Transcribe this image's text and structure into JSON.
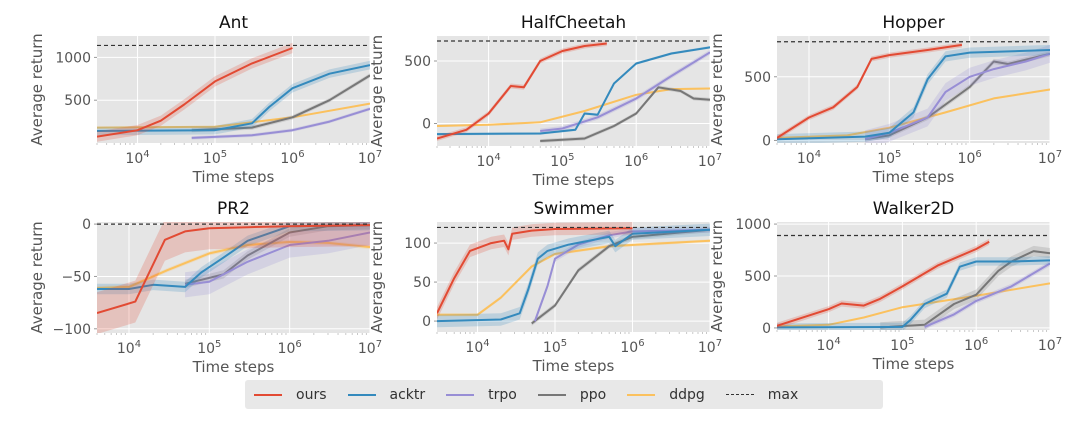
{
  "chart_data": [
    {
      "type": "line",
      "title": "Ant",
      "xlabel": "Time steps",
      "ylabel": "Average return",
      "xscale": "log",
      "xlim": [
        3000,
        10000000
      ],
      "ylim": [
        0,
        1250
      ],
      "xticks": [
        10000,
        100000,
        1000000,
        10000000
      ],
      "xtick_labels": [
        "10^4",
        "10^5",
        "10^6",
        "10^7"
      ],
      "yticks": [
        500,
        1000
      ],
      "ytick_labels": [
        "500",
        "1000"
      ],
      "max": 1140,
      "grid": true,
      "series": [
        {
          "name": "ours",
          "x": [
            3000,
            10000,
            20000,
            40000,
            100000,
            300000,
            1000000
          ],
          "y": [
            75,
            150,
            260,
            450,
            720,
            930,
            1110
          ],
          "band": 60
        },
        {
          "name": "acktr",
          "x": [
            3000,
            100000,
            300000,
            500000,
            1000000,
            3000000,
            10000000
          ],
          "y": [
            140,
            150,
            230,
            420,
            640,
            810,
            910
          ],
          "band": 50
        },
        {
          "name": "trpo",
          "x": [
            50000,
            300000,
            1000000,
            3000000,
            10000000
          ],
          "y": [
            60,
            90,
            150,
            250,
            400
          ],
          "band": 20
        },
        {
          "name": "ppo",
          "x": [
            50000,
            300000,
            1000000,
            3000000,
            10000000
          ],
          "y": [
            150,
            180,
            300,
            500,
            790
          ],
          "band": 25
        },
        {
          "name": "ddpg",
          "x": [
            3000,
            100000,
            1000000,
            10000000
          ],
          "y": [
            180,
            190,
            300,
            460
          ],
          "band": 10
        }
      ]
    },
    {
      "type": "line",
      "title": "HalfCheetah",
      "xlabel": "Time steps",
      "ylabel": "Average return",
      "xscale": "log",
      "xlim": [
        2000,
        10000000
      ],
      "ylim": [
        -180,
        700
      ],
      "xticks": [
        10000,
        100000,
        1000000,
        10000000
      ],
      "xtick_labels": [
        "10^4",
        "10^5",
        "10^6",
        "10^7"
      ],
      "yticks": [
        0,
        500
      ],
      "ytick_labels": [
        "0",
        "500"
      ],
      "max": 660,
      "grid": true,
      "series": [
        {
          "name": "ours",
          "x": [
            2000,
            5000,
            10000,
            20000,
            30000,
            50000,
            100000,
            200000,
            400000
          ],
          "y": [
            -120,
            -50,
            80,
            300,
            290,
            500,
            580,
            620,
            640
          ],
          "band": 20
        },
        {
          "name": "acktr",
          "x": [
            2000,
            50000,
            150000,
            200000,
            300000,
            500000,
            1000000,
            3000000,
            10000000
          ],
          "y": [
            -85,
            -80,
            -50,
            80,
            70,
            320,
            480,
            560,
            610
          ],
          "band": 10
        },
        {
          "name": "trpo",
          "x": [
            50000,
            100000,
            300000,
            1000000,
            3000000,
            10000000
          ],
          "y": [
            -60,
            -40,
            50,
            200,
            380,
            570
          ],
          "band": 20
        },
        {
          "name": "ppo",
          "x": [
            50000,
            200000,
            500000,
            1000000,
            2000000,
            4000000,
            6000000,
            10000000
          ],
          "y": [
            -140,
            -120,
            -20,
            80,
            290,
            260,
            200,
            190
          ],
          "band": 15
        },
        {
          "name": "ddpg",
          "x": [
            2000,
            10000,
            50000,
            200000,
            1000000,
            3000000,
            10000000
          ],
          "y": [
            -20,
            -10,
            10,
            100,
            230,
            275,
            280
          ],
          "band": 8
        }
      ]
    },
    {
      "type": "line",
      "title": "Hopper",
      "xlabel": "Time steps",
      "ylabel": "Average return",
      "xscale": "log",
      "xlim": [
        4000,
        10000000
      ],
      "ylim": [
        -20,
        820
      ],
      "xticks": [
        10000,
        100000,
        1000000,
        10000000
      ],
      "xtick_labels": [
        "10^4",
        "10^5",
        "10^6",
        "10^7"
      ],
      "yticks": [
        0,
        500
      ],
      "ytick_labels": [
        "0",
        "500"
      ],
      "max": 775,
      "grid": true,
      "series": [
        {
          "name": "ours",
          "x": [
            4000,
            10000,
            20000,
            40000,
            60000,
            100000,
            300000,
            800000
          ],
          "y": [
            20,
            180,
            260,
            420,
            640,
            670,
            710,
            750
          ],
          "band": 20
        },
        {
          "name": "acktr",
          "x": [
            4000,
            50000,
            100000,
            200000,
            300000,
            500000,
            1000000,
            10000000
          ],
          "y": [
            10,
            30,
            60,
            220,
            480,
            660,
            690,
            710
          ],
          "band": 40
        },
        {
          "name": "trpo",
          "x": [
            50000,
            100000,
            300000,
            500000,
            1000000,
            2000000,
            5000000,
            10000000
          ],
          "y": [
            10,
            60,
            180,
            380,
            500,
            560,
            620,
            680
          ],
          "band": 70
        },
        {
          "name": "ppo",
          "x": [
            50000,
            100000,
            300000,
            1000000,
            2000000,
            3000000,
            10000000
          ],
          "y": [
            10,
            40,
            180,
            420,
            620,
            600,
            680
          ],
          "band": 20
        },
        {
          "name": "ddpg",
          "x": [
            4000,
            30000,
            100000,
            500000,
            2000000,
            10000000
          ],
          "y": [
            20,
            40,
            100,
            220,
            330,
            400
          ],
          "band": 8
        }
      ]
    },
    {
      "type": "line",
      "title": "PR2",
      "xlabel": "Time steps",
      "ylabel": "Average return",
      "xscale": "log",
      "xlim": [
        4000,
        10000000
      ],
      "ylim": [
        -104,
        2
      ],
      "xticks": [
        10000,
        100000,
        1000000,
        10000000
      ],
      "xtick_labels": [
        "10^4",
        "10^5",
        "10^6",
        "10^7"
      ],
      "yticks": [
        -100,
        -50,
        0
      ],
      "ytick_labels": [
        "−100",
        "−50",
        "0"
      ],
      "max": 0,
      "grid": true,
      "series": [
        {
          "name": "ours",
          "x": [
            4000,
            12000,
            28000,
            50000,
            100000,
            300000,
            1000000,
            10000000
          ],
          "y": [
            -85,
            -74,
            -15,
            -7,
            -4,
            -3,
            -2,
            -1
          ],
          "band": 20
        },
        {
          "name": "acktr",
          "x": [
            4000,
            10000,
            20000,
            50000,
            80000,
            150000,
            300000,
            1000000,
            10000000
          ],
          "y": [
            -62,
            -62,
            -58,
            -60,
            -46,
            -32,
            -16,
            -2,
            -1
          ],
          "band": 5
        },
        {
          "name": "trpo",
          "x": [
            50000,
            100000,
            300000,
            1000000,
            3000000,
            10000000
          ],
          "y": [
            -58,
            -55,
            -36,
            -20,
            -16,
            -8
          ],
          "band": 12
        },
        {
          "name": "ppo",
          "x": [
            50000,
            150000,
            300000,
            1000000,
            3000000,
            10000000
          ],
          "y": [
            -57,
            -48,
            -30,
            -8,
            -2,
            -1
          ],
          "band": 4
        },
        {
          "name": "ddpg",
          "x": [
            4000,
            10000,
            30000,
            100000,
            300000,
            1000000,
            3000000,
            10000000
          ],
          "y": [
            -61,
            -60,
            -44,
            -28,
            -20,
            -17,
            -18,
            -22
          ],
          "band": 2
        }
      ]
    },
    {
      "type": "line",
      "title": "Swimmer",
      "xlabel": "Time steps",
      "ylabel": "Average return",
      "xscale": "log",
      "xlim": [
        3000,
        10000000
      ],
      "ylim": [
        -14,
        127
      ],
      "xticks": [
        10000,
        100000,
        1000000,
        10000000
      ],
      "xtick_labels": [
        "10^4",
        "10^5",
        "10^6",
        "10^7"
      ],
      "yticks": [
        0,
        50,
        100
      ],
      "ytick_labels": [
        "0",
        "50",
        "100"
      ],
      "max": 120,
      "grid": true,
      "series": [
        {
          "name": "ours",
          "x": [
            3000,
            5000,
            8000,
            15000,
            22000,
            25000,
            28000,
            50000,
            100000,
            1000000
          ],
          "y": [
            10,
            55,
            90,
            100,
            103,
            92,
            112,
            116,
            118,
            119
          ],
          "band": 8
        },
        {
          "name": "acktr",
          "x": [
            3000,
            20000,
            35000,
            45000,
            60000,
            80000,
            150000,
            500000,
            600000,
            1000000,
            10000000
          ],
          "y": [
            0,
            2,
            10,
            40,
            80,
            90,
            98,
            108,
            96,
            112,
            117
          ],
          "band": 8
        },
        {
          "name": "trpo",
          "x": [
            55000,
            80000,
            100000,
            200000,
            500000,
            1000000,
            10000000
          ],
          "y": [
            0,
            45,
            80,
            98,
            110,
            115,
            117
          ],
          "band": 4
        },
        {
          "name": "ppo",
          "x": [
            50000,
            100000,
            200000,
            500000,
            1000000,
            10000000
          ],
          "y": [
            -3,
            20,
            65,
            96,
            108,
            117
          ],
          "band": 3
        },
        {
          "name": "ddpg",
          "x": [
            3000,
            10000,
            20000,
            50000,
            100000,
            500000,
            10000000
          ],
          "y": [
            8,
            8,
            30,
            70,
            86,
            96,
            103
          ],
          "band": 2
        }
      ]
    },
    {
      "type": "line",
      "title": "Walker2D",
      "xlabel": "Time steps",
      "ylabel": "Average return",
      "xscale": "log",
      "xlim": [
        2000,
        10000000
      ],
      "ylim": [
        -20,
        1020
      ],
      "xticks": [
        10000,
        100000,
        1000000,
        10000000
      ],
      "xtick_labels": [
        "10^4",
        "10^5",
        "10^6",
        "10^7"
      ],
      "yticks": [
        0,
        500,
        1000
      ],
      "ytick_labels": [
        "0",
        "500",
        "1000"
      ],
      "max": 890,
      "grid": true,
      "series": [
        {
          "name": "ours",
          "x": [
            2000,
            10000,
            15000,
            30000,
            50000,
            100000,
            300000,
            1000000,
            1500000
          ],
          "y": [
            20,
            180,
            235,
            215,
            280,
            400,
            600,
            760,
            830
          ],
          "band": 30
        },
        {
          "name": "acktr",
          "x": [
            2000,
            100000,
            130000,
            200000,
            400000,
            600000,
            1000000,
            3000000,
            10000000
          ],
          "y": [
            5,
            10,
            80,
            230,
            330,
            590,
            640,
            640,
            650
          ],
          "band": 40
        },
        {
          "name": "trpo",
          "x": [
            200000,
            500000,
            1000000,
            3000000,
            10000000
          ],
          "y": [
            10,
            130,
            260,
            400,
            620
          ],
          "band": 25
        },
        {
          "name": "ppo",
          "x": [
            50000,
            200000,
            500000,
            1000000,
            2000000,
            3000000,
            6000000,
            10000000
          ],
          "y": [
            5,
            30,
            230,
            320,
            550,
            640,
            740,
            720
          ],
          "band": 50
        },
        {
          "name": "ddpg",
          "x": [
            2000,
            10000,
            30000,
            100000,
            1000000,
            10000000
          ],
          "y": [
            15,
            30,
            100,
            200,
            310,
            430
          ],
          "band": 5
        }
      ]
    }
  ],
  "legend": {
    "placement": "bottom-center",
    "items": [
      {
        "label": "ours",
        "color": "#e24a33",
        "style": "solid"
      },
      {
        "label": "acktr",
        "color": "#348abd",
        "style": "solid"
      },
      {
        "label": "trpo",
        "color": "#988ed5",
        "style": "solid"
      },
      {
        "label": "ppo",
        "color": "#777777",
        "style": "solid"
      },
      {
        "label": "ddpg",
        "color": "#fbc15e",
        "style": "solid"
      },
      {
        "label": "max",
        "color": "#333333",
        "style": "dashed"
      }
    ]
  },
  "colors": {
    "ours": "#e24a33",
    "acktr": "#348abd",
    "trpo": "#988ed5",
    "ppo": "#777777",
    "ddpg": "#fbc15e",
    "max": "#333333",
    "axes_bg": "#e5e5e5",
    "grid": "#ffffff",
    "text": "#555555"
  }
}
